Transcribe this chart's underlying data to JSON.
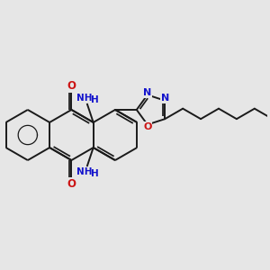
{
  "bg_color": "#e6e6e6",
  "bond_color": "#1a1a1a",
  "bond_width": 1.4,
  "N_color": "#1414cc",
  "O_color": "#cc1414",
  "font_size": 7.0,
  "figsize": [
    3.0,
    3.0
  ],
  "dpi": 100,
  "xlim": [
    -1.0,
    9.5
  ],
  "ylim": [
    -1.5,
    5.5
  ]
}
